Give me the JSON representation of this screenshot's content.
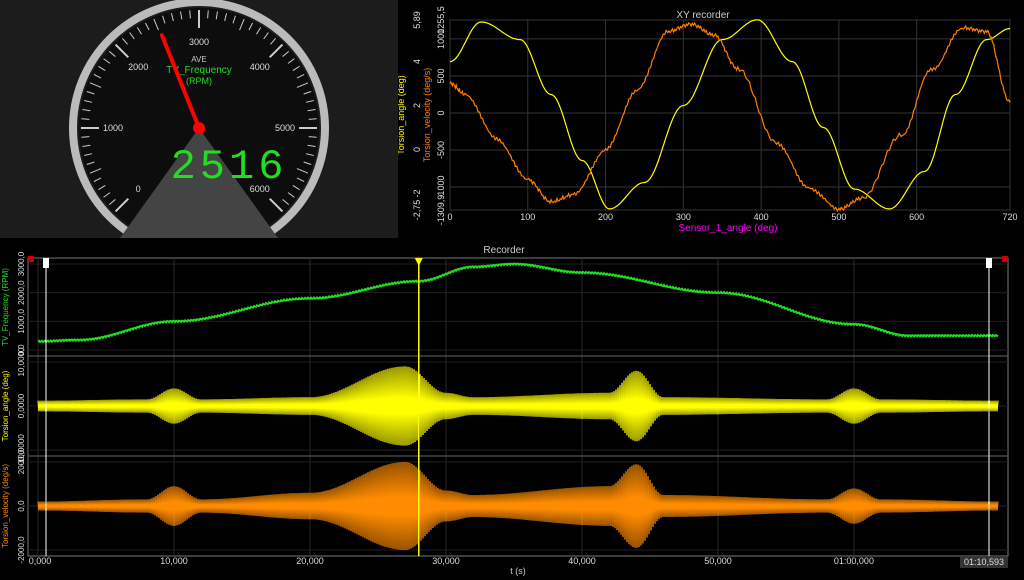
{
  "gauge": {
    "ave_label": "AVE",
    "channel_name": "TV_Frequency",
    "unit": "(RPM)",
    "value_text": "2516",
    "value": 2516,
    "min": 0,
    "max": 6000,
    "ticks": [
      "0",
      "1000",
      "2000",
      "3000",
      "4000",
      "5000",
      "6000"
    ],
    "needle_color": "#ff0000",
    "value_color": "#22dd22"
  },
  "xy": {
    "title": "XY recorder",
    "xlabel": "Sensor_1_angle (deg)",
    "ylabel_left": "Torsion_angle (deg)",
    "ylabel_right": "Torsion_velocity (deg/s)",
    "left_ticks": [
      "5,89",
      "4",
      "2",
      "0",
      "-2",
      "-2,75"
    ],
    "right_ticks": [
      "1255,5",
      "1000",
      "500",
      "0",
      "-500",
      "-1000",
      "-1309,9"
    ],
    "x_ticks": [
      "0",
      "100",
      "200",
      "300",
      "400",
      "500",
      "600",
      "720"
    ],
    "colors": {
      "angle": "#ffff00",
      "velocity": "#ff7f00",
      "xlabel": "#ff00ff"
    }
  },
  "recorder": {
    "title": "Recorder",
    "xlabel": "t (s)",
    "x_ticks": [
      "0,000",
      "10,000",
      "20,000",
      "30,000",
      "40,000",
      "50,000",
      "01:00,000"
    ],
    "x_end": "01:10,593",
    "cursor_time_s": 28,
    "channels": [
      {
        "name": "TV_Frequency (RPM)",
        "ticks": [
          "3000,0",
          "2000,0",
          "1000,0",
          "0,0"
        ],
        "color": "#22dd22"
      },
      {
        "name": "Torsion_angle (deg)",
        "ticks": [
          "10,0000",
          "0,0000",
          "-10,0000"
        ],
        "color": "#ffff00"
      },
      {
        "name": "Torsion_velocity (deg/s)",
        "ticks": [
          "2000,0",
          "0,0",
          "-2000,0"
        ],
        "color": "#ff8c00"
      }
    ],
    "tick_first_label": "0,000"
  },
  "chart_data": [
    {
      "type": "line",
      "title": "XY recorder",
      "xlabel": "Sensor_1_angle (deg)",
      "ylabel": "Torsion_angle (deg)",
      "xlim": [
        0,
        720
      ],
      "series": [
        {
          "name": "Torsion_angle (deg)",
          "axis": "left",
          "ylim": [
            -2.75,
            5.89
          ],
          "x": [
            0,
            40,
            90,
            130,
            170,
            205,
            250,
            300,
            350,
            395,
            440,
            480,
            520,
            565,
            610,
            650,
            690,
            720
          ],
          "y": [
            4.0,
            5.8,
            5.0,
            2.5,
            -0.5,
            -2.7,
            -1.5,
            2.0,
            5.0,
            5.9,
            4.0,
            1.0,
            -1.8,
            -2.7,
            -1.0,
            2.5,
            5.0,
            5.5
          ]
        },
        {
          "name": "Torsion_velocity (deg/s)",
          "axis": "right",
          "ylim": [
            -1309.9,
            1255.5
          ],
          "x": [
            0,
            20,
            60,
            100,
            130,
            160,
            200,
            240,
            280,
            310,
            340,
            370,
            420,
            460,
            500,
            530,
            580,
            620,
            660,
            690,
            720
          ],
          "y": [
            400,
            250,
            -350,
            -900,
            -1200,
            -1100,
            -500,
            300,
            1100,
            1200,
            1050,
            600,
            -400,
            -1000,
            -1300,
            -1150,
            -300,
            600,
            1150,
            1100,
            150
          ]
        }
      ]
    },
    {
      "type": "line",
      "title": "Recorder",
      "xlabel": "t (s)",
      "xlim": [
        0,
        70.593
      ],
      "series": [
        {
          "name": "TV_Frequency (RPM)",
          "ylim": [
            0,
            3000
          ],
          "x": [
            0,
            3,
            10,
            20,
            28,
            32,
            35,
            40,
            50,
            60,
            64,
            70.593
          ],
          "y": [
            300,
            350,
            1000,
            1800,
            2400,
            2900,
            3000,
            2700,
            2000,
            900,
            500,
            500
          ]
        },
        {
          "name": "Torsion_angle (deg) envelope",
          "ylim": [
            -10,
            10
          ],
          "x": [
            0,
            8,
            10,
            12,
            20,
            27,
            30,
            32,
            42,
            44,
            46,
            58,
            60,
            62,
            70.593
          ],
          "y": [
            1.2,
            1.5,
            4,
            1.5,
            2,
            9,
            3,
            2,
            3,
            8,
            2,
            1.5,
            4,
            1.5,
            1.2
          ]
        },
        {
          "name": "Torsion_velocity (deg/s) envelope",
          "ylim": [
            -2000,
            2000
          ],
          "x": [
            0,
            8,
            10,
            12,
            20,
            27,
            30,
            32,
            42,
            44,
            46,
            58,
            60,
            62,
            70.593
          ],
          "y": [
            200,
            300,
            900,
            300,
            600,
            2000,
            700,
            500,
            900,
            1900,
            500,
            300,
            800,
            300,
            200
          ]
        }
      ]
    }
  ]
}
